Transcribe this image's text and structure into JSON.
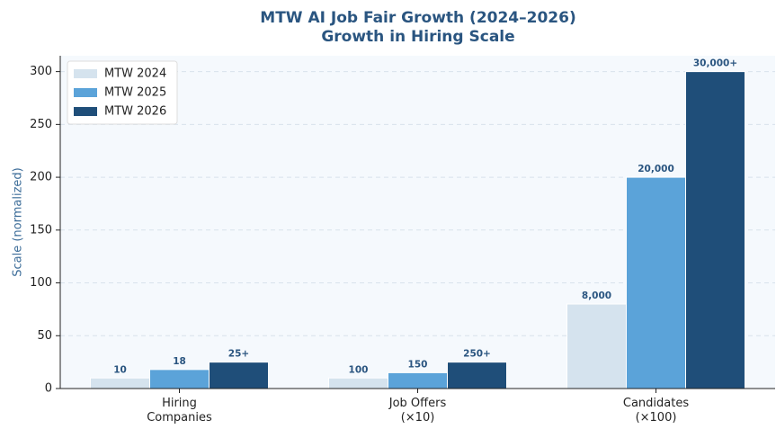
{
  "chart_data": {
    "type": "bar",
    "title": "MTW AI Job Fair Growth (2024–2026)",
    "subtitle": "Growth in Hiring Scale",
    "y_label": "Scale (normalized)",
    "categories": [
      "Hiring\nCompanies",
      "Job Offers\n(×10)",
      "Candidates\n(×100)"
    ],
    "series": [
      {
        "name": "MTW 2024",
        "color": "#d5e3ee",
        "values": [
          10,
          10,
          80
        ],
        "value_labels": [
          "10",
          "100",
          "8,000"
        ]
      },
      {
        "name": "MTW 2025",
        "color": "#5ba3d9",
        "values": [
          18,
          15,
          200
        ],
        "value_labels": [
          "18",
          "150",
          "20,000"
        ]
      },
      {
        "name": "MTW 2026",
        "color": "#1f4e79",
        "values": [
          25,
          25,
          300
        ],
        "value_labels": [
          "25+",
          "250+",
          "30,000+"
        ]
      }
    ],
    "ylim": [
      0,
      315
    ],
    "yticks": [
      0,
      50,
      100,
      150,
      200,
      250,
      300
    ],
    "grid": true,
    "legend": "upper left"
  }
}
